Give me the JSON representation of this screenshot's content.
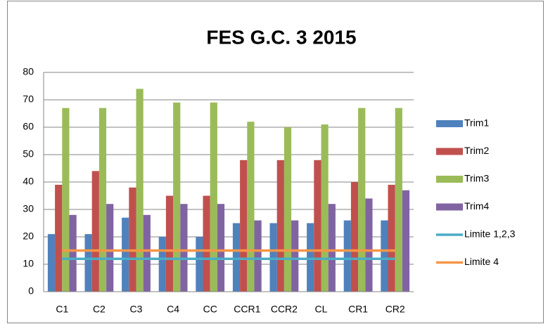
{
  "chart_data": {
    "type": "bar",
    "title": "FES G.C. 3 2015",
    "categories": [
      "C1",
      "C2",
      "C3",
      "C4",
      "CC",
      "CCR1",
      "CCR2",
      "CL",
      "CR1",
      "CR2"
    ],
    "series": [
      {
        "name": "Trim1",
        "color": "#4f81bd",
        "values": [
          21,
          21,
          27,
          20,
          20,
          25,
          25,
          25,
          26,
          26
        ]
      },
      {
        "name": "Trim2",
        "color": "#c0504d",
        "values": [
          39,
          44,
          38,
          35,
          35,
          48,
          48,
          48,
          40,
          39
        ]
      },
      {
        "name": "Trim3",
        "color": "#9bbb59",
        "values": [
          67,
          67,
          74,
          69,
          69,
          62,
          60,
          61,
          67,
          67
        ]
      },
      {
        "name": "Trim4",
        "color": "#8064a2",
        "values": [
          28,
          32,
          28,
          32,
          32,
          26,
          26,
          32,
          34,
          37
        ]
      },
      {
        "name": "Limite 1,2,3",
        "color": "#4bacc6",
        "type": "line",
        "values": [
          12,
          12,
          12,
          12,
          12,
          12,
          12,
          12,
          12,
          12
        ]
      },
      {
        "name": "Limite 4",
        "color": "#f79646",
        "type": "line",
        "values": [
          15,
          15,
          15,
          15,
          15,
          15,
          15,
          15,
          15,
          15
        ]
      }
    ],
    "ylim": [
      0,
      80
    ],
    "yticks": [
      0,
      10,
      20,
      30,
      40,
      50,
      60,
      70,
      80
    ],
    "grid": true,
    "legend": "right"
  }
}
